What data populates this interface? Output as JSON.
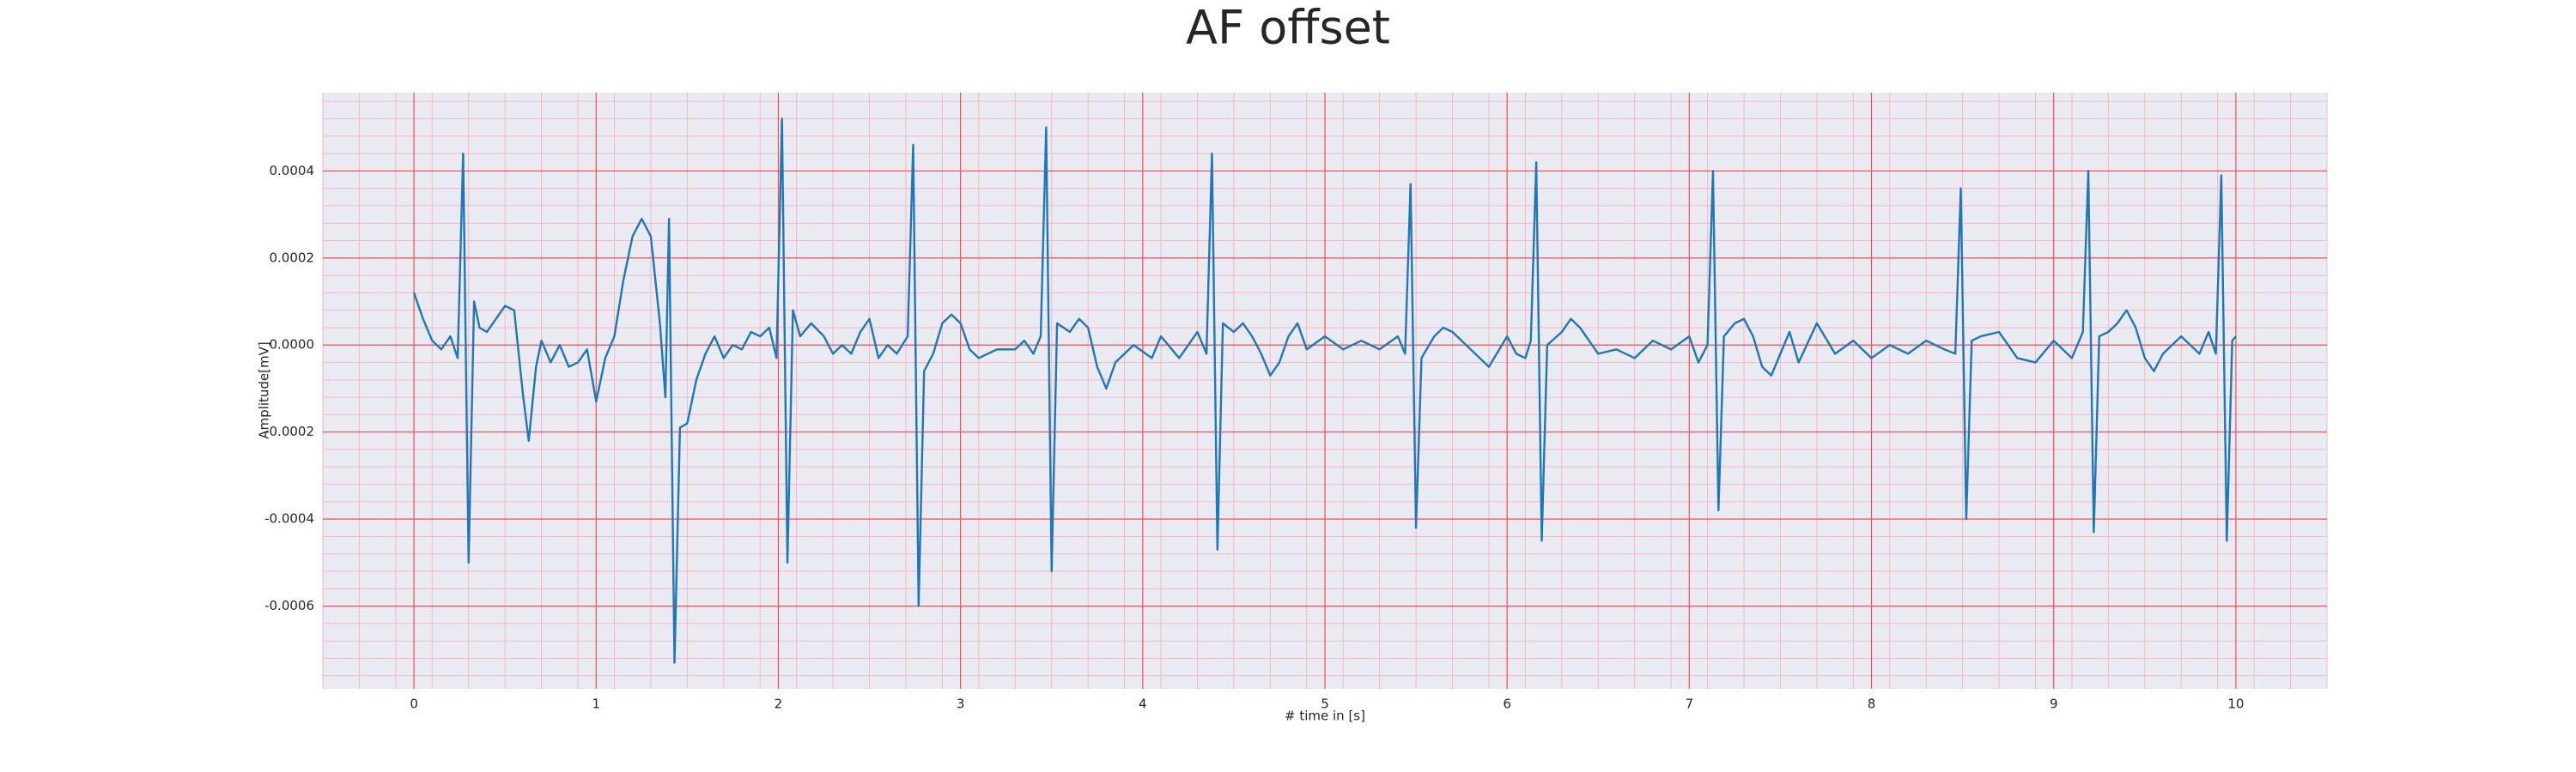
{
  "chart_data": {
    "type": "line",
    "title": "AF offset",
    "xlabel": "# time in [s]",
    "ylabel": "Amplitude[mV]",
    "x": [
      0.0,
      0.05,
      0.1,
      0.15,
      0.2,
      0.24,
      0.27,
      0.3,
      0.33,
      0.36,
      0.4,
      0.45,
      0.5,
      0.55,
      0.6,
      0.63,
      0.67,
      0.7,
      0.75,
      0.8,
      0.85,
      0.9,
      0.95,
      1.0,
      1.05,
      1.1,
      1.15,
      1.2,
      1.25,
      1.3,
      1.35,
      1.38,
      1.4,
      1.43,
      1.46,
      1.5,
      1.55,
      1.6,
      1.65,
      1.7,
      1.75,
      1.8,
      1.85,
      1.9,
      1.95,
      1.99,
      2.02,
      2.05,
      2.08,
      2.12,
      2.18,
      2.25,
      2.3,
      2.35,
      2.4,
      2.45,
      2.5,
      2.55,
      2.6,
      2.65,
      2.71,
      2.74,
      2.77,
      2.8,
      2.85,
      2.9,
      2.95,
      3.0,
      3.05,
      3.1,
      3.2,
      3.3,
      3.35,
      3.4,
      3.44,
      3.47,
      3.5,
      3.53,
      3.6,
      3.65,
      3.7,
      3.75,
      3.8,
      3.85,
      3.95,
      4.05,
      4.1,
      4.2,
      4.3,
      4.35,
      4.38,
      4.41,
      4.44,
      4.5,
      4.55,
      4.6,
      4.65,
      4.7,
      4.75,
      4.8,
      4.85,
      4.9,
      5.0,
      5.1,
      5.2,
      5.3,
      5.4,
      5.44,
      5.47,
      5.5,
      5.53,
      5.6,
      5.65,
      5.7,
      5.8,
      5.9,
      6.0,
      6.05,
      6.1,
      6.13,
      6.16,
      6.19,
      6.22,
      6.3,
      6.35,
      6.4,
      6.5,
      6.6,
      6.7,
      6.8,
      6.9,
      7.0,
      7.05,
      7.1,
      7.13,
      7.16,
      7.19,
      7.25,
      7.3,
      7.35,
      7.4,
      7.45,
      7.5,
      7.55,
      7.6,
      7.7,
      7.8,
      7.9,
      8.0,
      8.1,
      8.2,
      8.3,
      8.4,
      8.46,
      8.49,
      8.52,
      8.55,
      8.6,
      8.7,
      8.8,
      8.9,
      9.0,
      9.1,
      9.16,
      9.19,
      9.22,
      9.25,
      9.3,
      9.35,
      9.4,
      9.45,
      9.5,
      9.55,
      9.6,
      9.7,
      9.8,
      9.85,
      9.89,
      9.92,
      9.95,
      9.98,
      10.0
    ],
    "series": [
      {
        "name": "AF offset",
        "color": "#1f77b4",
        "values": [
          0.00012,
          6e-05,
          1e-05,
          -1e-05,
          2e-05,
          -3e-05,
          0.00044,
          -0.0005,
          0.0001,
          4e-05,
          3e-05,
          6e-05,
          9e-05,
          8e-05,
          -0.00012,
          -0.00022,
          -5e-05,
          1e-05,
          -4e-05,
          0.0,
          -5e-05,
          -4e-05,
          -1e-05,
          -0.00013,
          -3e-05,
          2e-05,
          0.00015,
          0.00025,
          0.00029,
          0.00025,
          5e-05,
          -0.00012,
          0.00029,
          -0.00073,
          -0.00019,
          -0.00018,
          -8e-05,
          -2e-05,
          2e-05,
          -3e-05,
          0.0,
          -1e-05,
          3e-05,
          2e-05,
          4e-05,
          -3e-05,
          0.00052,
          -0.0005,
          8e-05,
          2e-05,
          5e-05,
          2e-05,
          -2e-05,
          0.0,
          -2e-05,
          3e-05,
          6e-05,
          -3e-05,
          0.0,
          -2e-05,
          2e-05,
          0.00046,
          -0.0006,
          -6e-05,
          -2e-05,
          5e-05,
          7e-05,
          5e-05,
          -1e-05,
          -3e-05,
          -1e-05,
          -1e-05,
          1e-05,
          -2e-05,
          2e-05,
          0.0005,
          -0.00052,
          5e-05,
          3e-05,
          6e-05,
          4e-05,
          -5e-05,
          -0.0001,
          -4e-05,
          0.0,
          -3e-05,
          2e-05,
          -3e-05,
          3e-05,
          -2e-05,
          0.00044,
          -0.00047,
          5e-05,
          3e-05,
          5e-05,
          2e-05,
          -2e-05,
          -7e-05,
          -4e-05,
          2e-05,
          5e-05,
          -1e-05,
          2e-05,
          -1e-05,
          1e-05,
          -1e-05,
          2e-05,
          -2e-05,
          0.00037,
          -0.00042,
          -3e-05,
          2e-05,
          4e-05,
          3e-05,
          -1e-05,
          -5e-05,
          2e-05,
          -2e-05,
          -3e-05,
          1e-05,
          0.00042,
          -0.00045,
          0.0,
          3e-05,
          6e-05,
          4e-05,
          -2e-05,
          -1e-05,
          -3e-05,
          1e-05,
          -1e-05,
          2e-05,
          -4e-05,
          0.0,
          0.0004,
          -0.00038,
          2e-05,
          5e-05,
          6e-05,
          2e-05,
          -5e-05,
          -7e-05,
          -2e-05,
          3e-05,
          -4e-05,
          5e-05,
          -2e-05,
          1e-05,
          -3e-05,
          0.0,
          -2e-05,
          1e-05,
          -1e-05,
          -2e-05,
          0.00036,
          -0.0004,
          1e-05,
          2e-05,
          3e-05,
          -3e-05,
          -4e-05,
          1e-05,
          -3e-05,
          3e-05,
          0.0004,
          -0.00043,
          2e-05,
          3e-05,
          5e-05,
          8e-05,
          4e-05,
          -3e-05,
          -6e-05,
          -2e-05,
          2e-05,
          -2e-05,
          3e-05,
          -2e-05,
          0.00039,
          -0.00045,
          1e-05,
          2e-05
        ]
      }
    ],
    "xlim": [
      -0.5,
      10.5
    ],
    "xticks": [
      0,
      1,
      2,
      3,
      4,
      5,
      6,
      7,
      8,
      9,
      10
    ],
    "ylim": [
      -0.00079,
      0.00058
    ],
    "yticks": [
      -0.0006,
      -0.0004,
      -0.0002,
      {
        "value": 0,
        "label": "0.0000"
      },
      0.0002,
      0.0004
    ],
    "grid": true,
    "minor_grid": true
  }
}
